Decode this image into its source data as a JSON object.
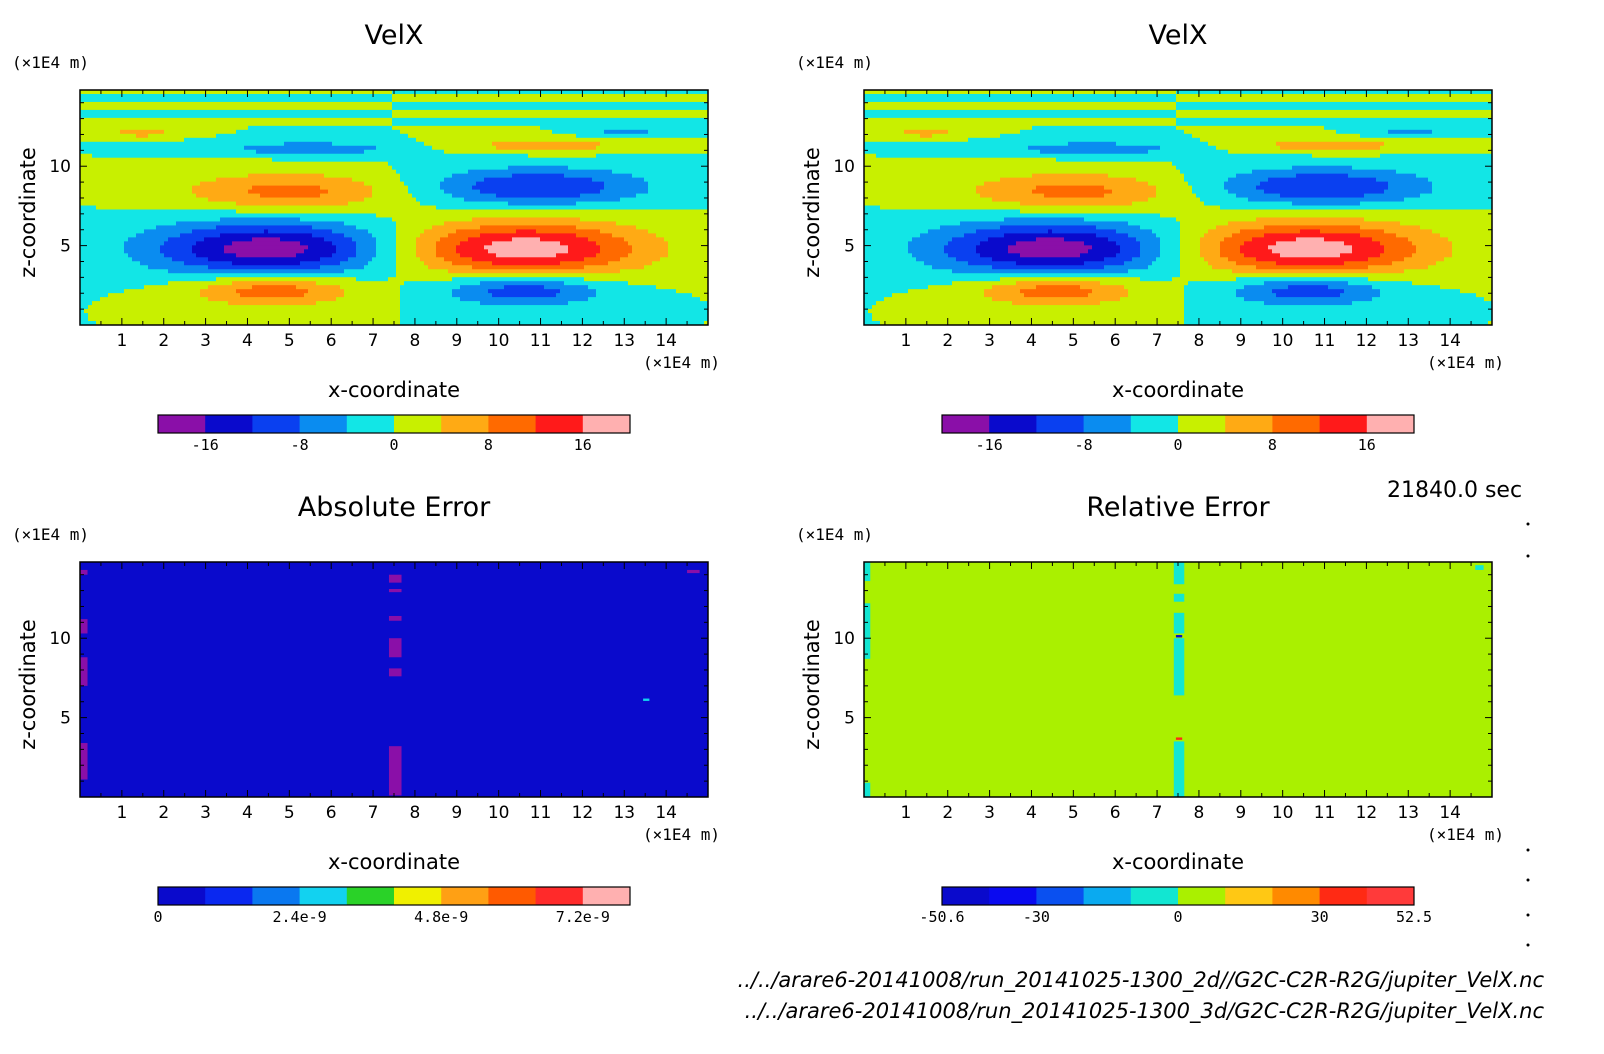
{
  "chart_data": [
    {
      "type": "heatmap",
      "title": "VelX",
      "xlabel": "x-coordinate",
      "ylabel": "z-coordinate",
      "x_unit": "(×1E4 m)",
      "y_unit": "(×1E4 m)",
      "xlim": [
        0,
        15
      ],
      "ylim": [
        0,
        14.8
      ],
      "xticks": [
        1,
        2,
        3,
        4,
        5,
        6,
        7,
        8,
        9,
        10,
        11,
        12,
        13,
        14
      ],
      "yticks": [
        5,
        10
      ],
      "colorbar": {
        "levels": [
          -20,
          -16,
          -12,
          -8,
          -4,
          0,
          4,
          8,
          12,
          16,
          20
        ],
        "tick_values": [
          -16,
          -8,
          0,
          8,
          16
        ],
        "tick_labels": [
          "-16",
          "-8",
          "0",
          "8",
          "16"
        ],
        "colors": [
          "#8a0fa8",
          "#0a0acc",
          "#0a40f0",
          "#0a8cf0",
          "#12e6e6",
          "#c8f000",
          "#ffaa14",
          "#ff6a00",
          "#ff1a1a",
          "#ffb0b0"
        ]
      },
      "field": {
        "kind": "velx",
        "blobs": [
          {
            "x": 4.5,
            "z": 4.8,
            "rx": 2.8,
            "rz": 1.7,
            "amp": -18.5
          },
          {
            "x": 10.6,
            "z": 4.8,
            "rx": 2.8,
            "rz": 1.7,
            "amp": 18.5
          },
          {
            "x": 5.0,
            "z": 8.4,
            "rx": 2.6,
            "rz": 1.2,
            "amp": 9.5
          },
          {
            "x": 10.9,
            "z": 8.7,
            "rx": 2.6,
            "rz": 1.2,
            "amp": -12.0
          },
          {
            "x": 4.6,
            "z": 2.2,
            "rx": 1.9,
            "rz": 1.0,
            "amp": 11.5
          },
          {
            "x": 10.6,
            "z": 2.2,
            "rx": 1.9,
            "rz": 1.0,
            "amp": -11.5
          },
          {
            "x": 5.5,
            "z": 11.1,
            "rx": 2.2,
            "rz": 0.45,
            "amp": -7.0
          },
          {
            "x": 11.1,
            "z": 11.3,
            "rx": 2.1,
            "rz": 0.45,
            "amp": 6.5
          },
          {
            "x": 1.5,
            "z": 12.1,
            "rx": 0.9,
            "rz": 0.3,
            "amp": 6.0
          },
          {
            "x": 13.0,
            "z": 12.1,
            "rx": 0.9,
            "rz": 0.3,
            "amp": -6.0
          }
        ]
      }
    },
    {
      "type": "heatmap",
      "title": "VelX",
      "xlabel": "x-coordinate",
      "ylabel": "z-coordinate",
      "x_unit": "(×1E4 m)",
      "y_unit": "(×1E4 m)",
      "xlim": [
        0,
        15
      ],
      "ylim": [
        0,
        14.8
      ],
      "xticks": [
        1,
        2,
        3,
        4,
        5,
        6,
        7,
        8,
        9,
        10,
        11,
        12,
        13,
        14
      ],
      "yticks": [
        5,
        10
      ],
      "colorbar": {
        "levels": [
          -20,
          -16,
          -12,
          -8,
          -4,
          0,
          4,
          8,
          12,
          16,
          20
        ],
        "tick_values": [
          -16,
          -8,
          0,
          8,
          16
        ],
        "tick_labels": [
          "-16",
          "-8",
          "0",
          "8",
          "16"
        ],
        "colors": [
          "#8a0fa8",
          "#0a0acc",
          "#0a40f0",
          "#0a8cf0",
          "#12e6e6",
          "#c8f000",
          "#ffaa14",
          "#ff6a00",
          "#ff1a1a",
          "#ffb0b0"
        ]
      },
      "field": {
        "kind": "velx",
        "blobs": [
          {
            "x": 4.5,
            "z": 4.8,
            "rx": 2.8,
            "rz": 1.7,
            "amp": -18.5
          },
          {
            "x": 10.6,
            "z": 4.8,
            "rx": 2.8,
            "rz": 1.7,
            "amp": 18.5
          },
          {
            "x": 5.0,
            "z": 8.4,
            "rx": 2.6,
            "rz": 1.2,
            "amp": 9.5
          },
          {
            "x": 10.9,
            "z": 8.7,
            "rx": 2.6,
            "rz": 1.2,
            "amp": -12.0
          },
          {
            "x": 4.6,
            "z": 2.2,
            "rx": 1.9,
            "rz": 1.0,
            "amp": 11.5
          },
          {
            "x": 10.6,
            "z": 2.2,
            "rx": 1.9,
            "rz": 1.0,
            "amp": -11.5
          },
          {
            "x": 5.5,
            "z": 11.1,
            "rx": 2.2,
            "rz": 0.45,
            "amp": -7.0
          },
          {
            "x": 11.1,
            "z": 11.3,
            "rx": 2.1,
            "rz": 0.45,
            "amp": 6.5
          },
          {
            "x": 1.5,
            "z": 12.1,
            "rx": 0.9,
            "rz": 0.3,
            "amp": 6.0
          },
          {
            "x": 13.0,
            "z": 12.1,
            "rx": 0.9,
            "rz": 0.3,
            "amp": -6.0
          }
        ]
      }
    },
    {
      "type": "heatmap",
      "title": "Absolute Error",
      "xlabel": "x-coordinate",
      "ylabel": "z-coordinate",
      "x_unit": "(×1E4 m)",
      "y_unit": "(×1E4 m)",
      "xlim": [
        0,
        15
      ],
      "ylim": [
        0,
        14.8
      ],
      "xticks": [
        1,
        2,
        3,
        4,
        5,
        6,
        7,
        8,
        9,
        10,
        11,
        12,
        13,
        14
      ],
      "yticks": [
        5,
        10
      ],
      "colorbar": {
        "levels": [
          0,
          8e-10,
          1.6e-09,
          2.4e-09,
          3.2e-09,
          4e-09,
          4.8e-09,
          5.6e-09,
          6.4e-09,
          7.2e-09,
          8e-09
        ],
        "tick_values": [
          0,
          2.4e-09,
          4.8e-09,
          7.2e-09
        ],
        "tick_labels": [
          "0",
          "2.4e-9",
          "4.8e-9",
          "7.2e-9"
        ],
        "colors": [
          "#0a0acc",
          "#0a28f0",
          "#0a78f0",
          "#12d2f0",
          "#2ad228",
          "#f0f000",
          "#ffa014",
          "#ff5a00",
          "#ff2a2a",
          "#ffb0b0"
        ]
      },
      "field": {
        "kind": "abs",
        "base_color": "#0a0acc",
        "patches": [
          {
            "x0": 0.0,
            "x1": 0.18,
            "z0": 14.0,
            "z1": 14.3,
            "color": "#8a0fa8"
          },
          {
            "x0": 0.0,
            "x1": 0.18,
            "z0": 10.3,
            "z1": 11.2,
            "color": "#8a0fa8"
          },
          {
            "x0": 0.0,
            "x1": 0.18,
            "z0": 7.0,
            "z1": 8.8,
            "color": "#8a0fa8"
          },
          {
            "x0": 0.0,
            "x1": 0.18,
            "z0": 1.1,
            "z1": 3.4,
            "color": "#8a0fa8"
          },
          {
            "x0": 7.38,
            "x1": 7.68,
            "z0": 13.5,
            "z1": 14.0,
            "color": "#8a0fa8"
          },
          {
            "x0": 7.38,
            "x1": 7.68,
            "z0": 12.9,
            "z1": 13.1,
            "color": "#8a0fa8"
          },
          {
            "x0": 7.38,
            "x1": 7.68,
            "z0": 11.1,
            "z1": 11.4,
            "color": "#8a0fa8"
          },
          {
            "x0": 7.38,
            "x1": 7.68,
            "z0": 8.8,
            "z1": 10.0,
            "color": "#8a0fa8"
          },
          {
            "x0": 7.38,
            "x1": 7.68,
            "z0": 7.6,
            "z1": 8.1,
            "color": "#8a0fa8"
          },
          {
            "x0": 7.38,
            "x1": 7.68,
            "z0": 0.1,
            "z1": 3.2,
            "color": "#8a0fa8"
          },
          {
            "x0": 14.5,
            "x1": 14.8,
            "z0": 14.1,
            "z1": 14.3,
            "color": "#8a0fa8"
          },
          {
            "x0": 13.45,
            "x1": 13.6,
            "z0": 6.05,
            "z1": 6.2,
            "color": "#12d2f0"
          }
        ]
      }
    },
    {
      "type": "heatmap",
      "title": "Relative Error",
      "xlabel": "x-coordinate",
      "ylabel": "z-coordinate",
      "x_unit": "(×1E4 m)",
      "y_unit": "(×1E4 m)",
      "xlim": [
        0,
        15
      ],
      "ylim": [
        0,
        14.8
      ],
      "xticks": [
        1,
        2,
        3,
        4,
        5,
        6,
        7,
        8,
        9,
        10,
        11,
        12,
        13,
        14
      ],
      "yticks": [
        5,
        10
      ],
      "colorbar": {
        "levels": [
          -50.6,
          -40,
          -30,
          -20,
          -10,
          0,
          10,
          20,
          30,
          40,
          52.5
        ],
        "tick_values": [
          -50.6,
          -30,
          0,
          30,
          52.5
        ],
        "tick_labels": [
          "-50.6",
          "-30",
          "0",
          "30",
          "52.5"
        ],
        "colors": [
          "#0a0acc",
          "#0a0af0",
          "#0a50f0",
          "#0aaaf0",
          "#12e6d2",
          "#aaf000",
          "#ffc814",
          "#ff8a00",
          "#ff2a14",
          "#ff3a3a"
        ]
      },
      "field": {
        "kind": "rel",
        "base_color": "#aaf000",
        "patches": [
          {
            "x0": 0.0,
            "x1": 0.15,
            "z0": 13.6,
            "z1": 14.8,
            "color": "#12e6d2"
          },
          {
            "x0": 0.0,
            "x1": 0.15,
            "z0": 8.7,
            "z1": 12.2,
            "color": "#12e6d2"
          },
          {
            "x0": 0.0,
            "x1": 0.15,
            "z0": 0.0,
            "z1": 0.9,
            "color": "#12e6d2"
          },
          {
            "x0": 7.4,
            "x1": 7.65,
            "z0": 13.4,
            "z1": 14.8,
            "color": "#12e6d2"
          },
          {
            "x0": 7.4,
            "x1": 7.65,
            "z0": 12.3,
            "z1": 12.8,
            "color": "#12e6d2"
          },
          {
            "x0": 7.4,
            "x1": 7.65,
            "z0": 10.3,
            "z1": 11.6,
            "color": "#12e6d2"
          },
          {
            "x0": 7.4,
            "x1": 7.65,
            "z0": 6.4,
            "z1": 10.0,
            "color": "#12e6d2"
          },
          {
            "x0": 7.4,
            "x1": 7.65,
            "z0": 0.0,
            "z1": 3.5,
            "color": "#12e6d2"
          },
          {
            "x0": 7.45,
            "x1": 7.6,
            "z0": 10.05,
            "z1": 10.2,
            "color": "#0a0acc"
          },
          {
            "x0": 7.45,
            "x1": 7.6,
            "z0": 3.6,
            "z1": 3.75,
            "color": "#ff2a14"
          },
          {
            "x0": 14.6,
            "x1": 14.8,
            "z0": 14.3,
            "z1": 14.6,
            "color": "#12e6d2"
          }
        ]
      }
    }
  ],
  "time_label": "21840.0 sec",
  "file_lines": [
    "../../arare6-20141008/run_20141025-1300_2d//G2C-C2R-R2G/jupiter_VelX.nc",
    "../../arare6-20141008/run_20141025-1300_3d/G2C-C2R-R2G/jupiter_VelX.nc"
  ]
}
